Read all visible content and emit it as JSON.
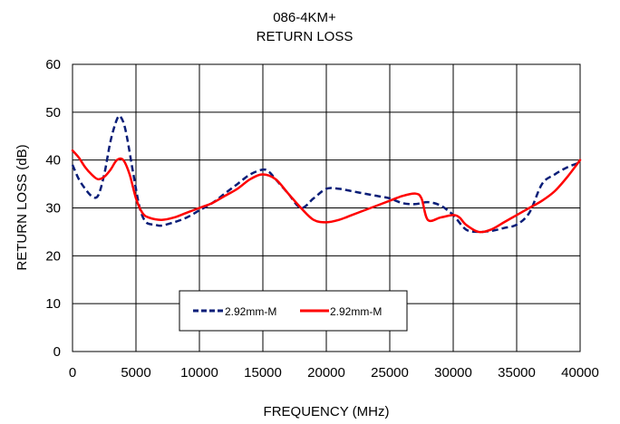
{
  "chart_data": {
    "type": "line",
    "title": [
      "086-4KM+",
      "RETURN LOSS"
    ],
    "xlabel": "FREQUENCY (MHz)",
    "ylabel": "RETURN LOSS (dB)",
    "xlim": [
      0,
      40000
    ],
    "ylim": [
      0,
      60
    ],
    "xticks": [
      0,
      5000,
      10000,
      15000,
      20000,
      25000,
      30000,
      35000,
      40000
    ],
    "yticks": [
      0,
      10,
      20,
      30,
      40,
      50,
      60
    ],
    "grid": true,
    "legend_position": "bottom-center",
    "series": [
      {
        "name": "2.92mm-M",
        "color": "#0a1e78",
        "style": "dashed",
        "x": [
          0,
          500,
          1000,
          1500,
          2000,
          2500,
          3000,
          3500,
          3800,
          4200,
          4800,
          5300,
          5800,
          6500,
          7000,
          8000,
          9000,
          10000,
          11000,
          12000,
          13000,
          14000,
          15000,
          15500,
          16000,
          17000,
          18000,
          19000,
          20000,
          21000,
          22000,
          23000,
          24000,
          25000,
          26000,
          27000,
          28000,
          29000,
          30000,
          31000,
          32000,
          33000,
          34000,
          35000,
          36000,
          37000,
          38000,
          39000,
          40000
        ],
        "y": [
          39,
          36,
          34,
          32.5,
          32.5,
          37,
          44,
          48.5,
          49,
          46,
          37,
          30,
          27,
          26.5,
          26.3,
          27,
          28,
          29.5,
          31,
          33,
          35,
          37,
          38,
          37.5,
          36,
          33,
          30,
          32,
          34,
          34,
          33.5,
          33,
          32.5,
          32,
          31,
          30.8,
          31.2,
          30.5,
          28.5,
          25.5,
          25,
          25.2,
          25.8,
          26.5,
          29,
          35,
          37,
          38.5,
          39.5
        ]
      },
      {
        "name": "2.92mm-M",
        "color": "#ff0000",
        "style": "solid",
        "x": [
          0,
          500,
          1000,
          1500,
          2000,
          2500,
          3000,
          3500,
          4000,
          4500,
          5000,
          5500,
          6000,
          7000,
          8000,
          9000,
          10000,
          11000,
          12000,
          13000,
          14000,
          15000,
          16000,
          17000,
          18000,
          19000,
          20000,
          21000,
          22000,
          23000,
          24000,
          25000,
          26000,
          27000,
          27500,
          28000,
          29000,
          30000,
          30500,
          31000,
          32000,
          33000,
          34000,
          35000,
          36000,
          37000,
          38000,
          39000,
          40000
        ],
        "y": [
          42,
          40.5,
          38.5,
          37,
          36,
          36.5,
          38,
          40,
          40,
          37,
          32,
          29,
          28,
          27.5,
          28,
          29,
          30,
          31,
          32.5,
          34,
          36,
          37,
          36,
          33,
          30,
          27.5,
          27,
          27.5,
          28.5,
          29.5,
          30.5,
          31.5,
          32.5,
          33,
          32,
          27.5,
          28,
          28.5,
          28,
          26.5,
          25,
          25.5,
          27,
          28.5,
          30,
          31.5,
          33.5,
          36.5,
          40
        ]
      }
    ]
  }
}
